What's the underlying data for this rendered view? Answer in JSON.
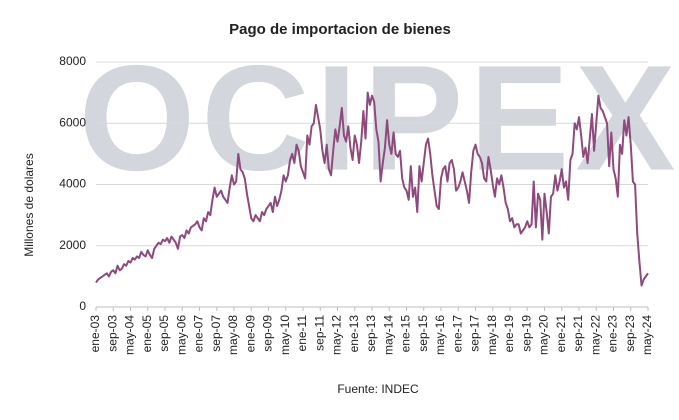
{
  "chart_data": {
    "type": "line",
    "title": "Pago de importacion de bienes",
    "ylabel": "Millones de dolares",
    "source": "Fuente: INDEC",
    "watermark": "OCIPEX",
    "color": "#8e4a7c",
    "grid": true,
    "ylim": [
      0,
      8000
    ],
    "yticks": [
      0,
      2000,
      4000,
      6000,
      8000
    ],
    "categories": [
      "ene-03",
      null,
      null,
      null,
      null,
      null,
      null,
      null,
      "sep-03",
      null,
      null,
      null,
      null,
      null,
      null,
      null,
      "may-04",
      null,
      null,
      null,
      null,
      null,
      null,
      null,
      "ene-05",
      null,
      null,
      null,
      null,
      null,
      null,
      null,
      "sep-05",
      null,
      null,
      null,
      null,
      null,
      null,
      null,
      "may-06",
      null,
      null,
      null,
      null,
      null,
      null,
      null,
      "ene-07",
      null,
      null,
      null,
      null,
      null,
      null,
      null,
      "sep-07",
      null,
      null,
      null,
      null,
      null,
      null,
      null,
      "may-08",
      null,
      null,
      null,
      null,
      null,
      null,
      null,
      "ene-09",
      null,
      null,
      null,
      null,
      null,
      null,
      null,
      "sep-09",
      null,
      null,
      null,
      null,
      null,
      null,
      null,
      "may-10",
      null,
      null,
      null,
      null,
      null,
      null,
      null,
      "ene-11",
      null,
      null,
      null,
      null,
      null,
      null,
      null,
      "sep-11",
      null,
      null,
      null,
      null,
      null,
      null,
      null,
      "may-12",
      null,
      null,
      null,
      null,
      null,
      null,
      null,
      "ene-13",
      null,
      null,
      null,
      null,
      null,
      null,
      null,
      "sep-13",
      null,
      null,
      null,
      null,
      null,
      null,
      null,
      "may-14",
      null,
      null,
      null,
      null,
      null,
      null,
      null,
      "ene-15",
      null,
      null,
      null,
      null,
      null,
      null,
      null,
      "sep-15",
      null,
      null,
      null,
      null,
      null,
      null,
      null,
      "may-16",
      null,
      null,
      null,
      null,
      null,
      null,
      null,
      "ene-17",
      null,
      null,
      null,
      null,
      null,
      null,
      null,
      "sep-17",
      null,
      null,
      null,
      null,
      null,
      null,
      null,
      "may-18",
      null,
      null,
      null,
      null,
      null,
      null,
      null,
      "ene-19",
      null,
      null,
      null,
      null,
      null,
      null,
      null,
      "sep-19",
      null,
      null,
      null,
      null,
      null,
      null,
      null,
      "may-20",
      null,
      null,
      null,
      null,
      null,
      null,
      null,
      "ene-21",
      null,
      null,
      null,
      null,
      null,
      null,
      null,
      "sep-21",
      null,
      null,
      null,
      null,
      null,
      null,
      null,
      "may-22",
      null,
      null,
      null,
      null,
      null,
      null,
      null,
      "ene-23",
      null,
      null,
      null,
      null,
      null,
      null,
      null,
      "sep-23",
      null,
      null,
      null,
      null,
      null,
      null,
      null,
      "may-24"
    ],
    "values": [
      800,
      900,
      950,
      1000,
      1050,
      1100,
      1000,
      1150,
      1200,
      1100,
      1350,
      1200,
      1250,
      1400,
      1350,
      1500,
      1450,
      1600,
      1550,
      1650,
      1600,
      1800,
      1700,
      1650,
      1850,
      1700,
      1600,
      1900,
      2000,
      2100,
      2050,
      2200,
      2150,
      2250,
      2100,
      2300,
      2200,
      2100,
      1900,
      2300,
      2350,
      2250,
      2500,
      2400,
      2600,
      2650,
      2700,
      2800,
      2600,
      2500,
      2900,
      2800,
      3100,
      3000,
      3500,
      3900,
      3600,
      3700,
      3800,
      3600,
      3500,
      3400,
      3900,
      4300,
      4000,
      4100,
      5000,
      4500,
      4400,
      4200,
      3700,
      3300,
      2900,
      2800,
      3000,
      2900,
      2800,
      3100,
      3000,
      3200,
      3300,
      3400,
      3100,
      3600,
      3300,
      3500,
      3800,
      4300,
      4100,
      4300,
      4800,
      5000,
      4700,
      5300,
      5100,
      4600,
      4400,
      4200,
      5600,
      5300,
      5900,
      6000,
      6600,
      6200,
      5800,
      5100,
      4700,
      5300,
      4500,
      4300,
      5100,
      5800,
      5400,
      5900,
      6500,
      5600,
      5400,
      5900,
      5200,
      4800,
      5600,
      5300,
      4700,
      5400,
      6400,
      5500,
      7000,
      6600,
      6900,
      6700,
      5800,
      5400,
      4100,
      4700,
      5200,
      6100,
      5300,
      5000,
      5700,
      5000,
      4900,
      5100,
      4200,
      3900,
      3800,
      3500,
      4600,
      3600,
      3900,
      3100,
      4600,
      4100,
      4700,
      5300,
      5500,
      5000,
      4300,
      3800,
      3300,
      3200,
      4200,
      4500,
      4600,
      4100,
      4700,
      4800,
      4500,
      3800,
      3900,
      4100,
      4400,
      4100,
      3800,
      3400,
      4400,
      5100,
      5300,
      5000,
      4900,
      4700,
      4200,
      4100,
      4900,
      4500,
      4000,
      3600,
      4200,
      4000,
      4300,
      3900,
      3400,
      3200,
      2800,
      2900,
      2600,
      2700,
      2700,
      2400,
      2500,
      2600,
      2800,
      2600,
      2700,
      4100,
      2600,
      3700,
      3500,
      2200,
      3700,
      3100,
      2400,
      3600,
      3700,
      4300,
      3800,
      4100,
      4500,
      3900,
      4100,
      3500,
      4800,
      5000,
      6000,
      5800,
      6200,
      5600,
      4900,
      5200,
      4700,
      5500,
      6300,
      5100,
      6000,
      6900,
      6500,
      6400,
      6200,
      6000,
      4600,
      5700,
      4500,
      4200,
      3600,
      5300,
      5000,
      6100,
      5600,
      6200,
      5300,
      4100,
      4000,
      2400,
      1500,
      700,
      900,
      1000,
      1100
    ]
  }
}
